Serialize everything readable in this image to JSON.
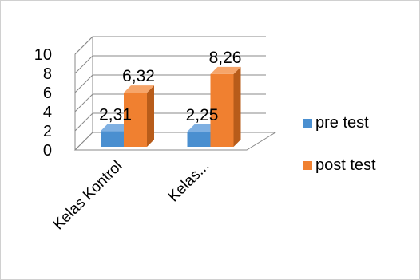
{
  "chart_data": {
    "type": "bar",
    "style": "3d-clustered-column",
    "categories": [
      "Kelas Kontrol",
      "Kelas..."
    ],
    "series": [
      {
        "name": "pre test",
        "values": [
          2.31,
          2.25
        ],
        "labels": [
          "2,31",
          "2,25"
        ],
        "color": "#4a8fd0",
        "color_side": "#2f67a3",
        "color_top": "#7fb0e2"
      },
      {
        "name": "post test",
        "values": [
          6.32,
          8.26
        ],
        "labels": [
          "6,32",
          "8,26"
        ],
        "color": "#f08030",
        "color_side": "#b85c1a",
        "color_top": "#f6a56a"
      }
    ],
    "ylim": [
      0,
      10
    ],
    "yticks": [
      "0",
      "2",
      "4",
      "6",
      "8",
      "10"
    ],
    "grid": true,
    "legend": "right"
  }
}
